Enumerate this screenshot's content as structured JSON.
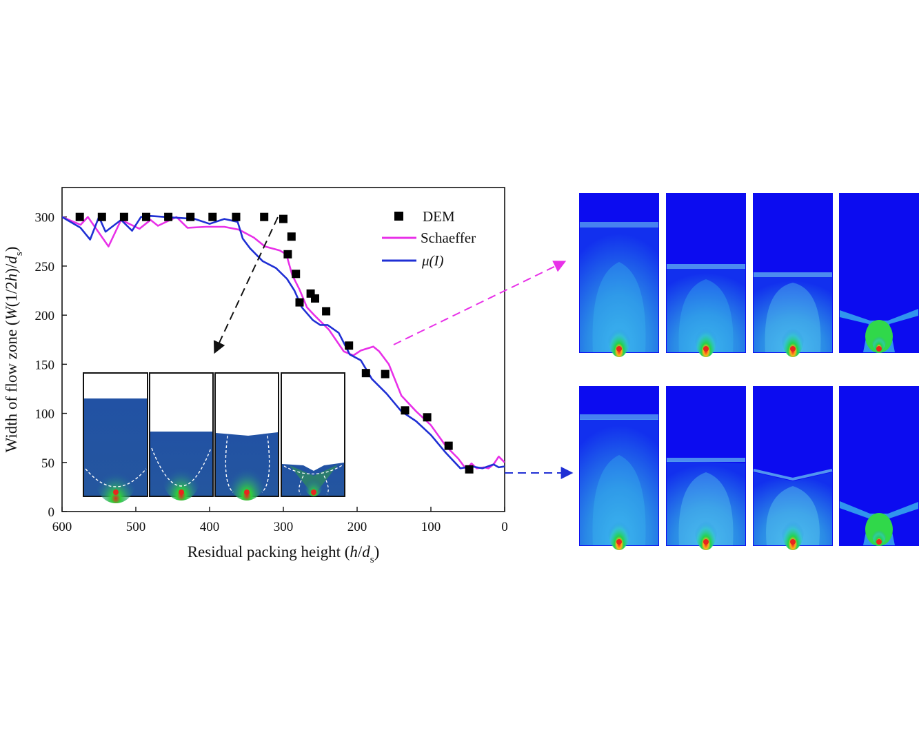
{
  "chart_data": {
    "type": "line",
    "xlabel_parts": [
      "Residual packing height (",
      "h",
      "/",
      "d",
      "s",
      ")"
    ],
    "ylabel_parts": [
      "Width of flow zone (",
      "W",
      "(1/2",
      "h",
      ")/",
      "d",
      "s",
      ")"
    ],
    "xlim": [
      600,
      0
    ],
    "ylim": [
      0,
      330
    ],
    "x_ticks": [
      "600",
      "500",
      "400",
      "300",
      "200",
      "100",
      "0"
    ],
    "y_ticks": [
      "0",
      "50",
      "100",
      "150",
      "200",
      "250",
      "300"
    ],
    "legend_position": "top-right",
    "series": [
      {
        "name": "DEM",
        "kind": "scatter",
        "color": "#000000",
        "x": [
          576,
          546,
          516,
          486,
          456,
          426,
          396,
          364,
          326,
          300,
          294,
          289,
          283,
          278,
          263,
          257,
          242,
          211,
          188,
          162,
          135,
          105,
          76,
          48
        ],
        "y": [
          300,
          300,
          300,
          300,
          300,
          300,
          300,
          300,
          300,
          298,
          262,
          280,
          242,
          213,
          222,
          217,
          204,
          169,
          141,
          140,
          103,
          96,
          67,
          43
        ]
      },
      {
        "name": "Schaeffer",
        "kind": "line",
        "color": "#e830e8",
        "x": [
          600,
          575,
          565,
          537,
          520,
          495,
          480,
          470,
          445,
          430,
          405,
          380,
          360,
          340,
          325,
          305,
          296,
          288,
          278,
          268,
          258,
          238,
          218,
          205,
          195,
          178,
          170,
          157,
          140,
          120,
          100,
          80,
          63,
          52,
          45,
          38,
          28,
          22,
          15,
          8,
          0
        ],
        "y": [
          300,
          292,
          300,
          270,
          297,
          288,
          297,
          291,
          300,
          289,
          290,
          290,
          287,
          279,
          270,
          266,
          262,
          241,
          226,
          208,
          200,
          185,
          163,
          159,
          164,
          168,
          163,
          150,
          118,
          102,
          88,
          67,
          54,
          43,
          49,
          44,
          45,
          44,
          48,
          56,
          50
        ]
      },
      {
        "name": "μ(I)",
        "kind": "line",
        "color": "#1f2fd4",
        "x": [
          600,
          575,
          562,
          550,
          541,
          520,
          505,
          493,
          480,
          460,
          440,
          420,
          400,
          380,
          362,
          355,
          345,
          328,
          310,
          295,
          285,
          275,
          260,
          250,
          240,
          225,
          210,
          195,
          180,
          160,
          140,
          120,
          100,
          80,
          60,
          45,
          30,
          15,
          8,
          0
        ],
        "y": [
          300,
          289,
          277,
          300,
          285,
          297,
          286,
          300,
          301,
          300,
          299,
          298,
          293,
          298,
          295,
          278,
          268,
          255,
          248,
          237,
          225,
          208,
          195,
          190,
          190,
          182,
          160,
          154,
          135,
          120,
          102,
          92,
          78,
          60,
          44,
          46,
          44,
          48,
          45,
          46
        ]
      }
    ]
  },
  "snapshots": {
    "inset_panel_count": 4,
    "top_row_panel_count": 4,
    "bottom_row_panel_count": 4
  },
  "colors": {
    "dem": "#000000",
    "schaeffer": "#e830e8",
    "mu_i": "#1f2fd4",
    "field_background": "#0c0cf0",
    "field_mid": "#2aa0e8",
    "field_high": "#22d34a",
    "field_peak": "#e8261e"
  }
}
